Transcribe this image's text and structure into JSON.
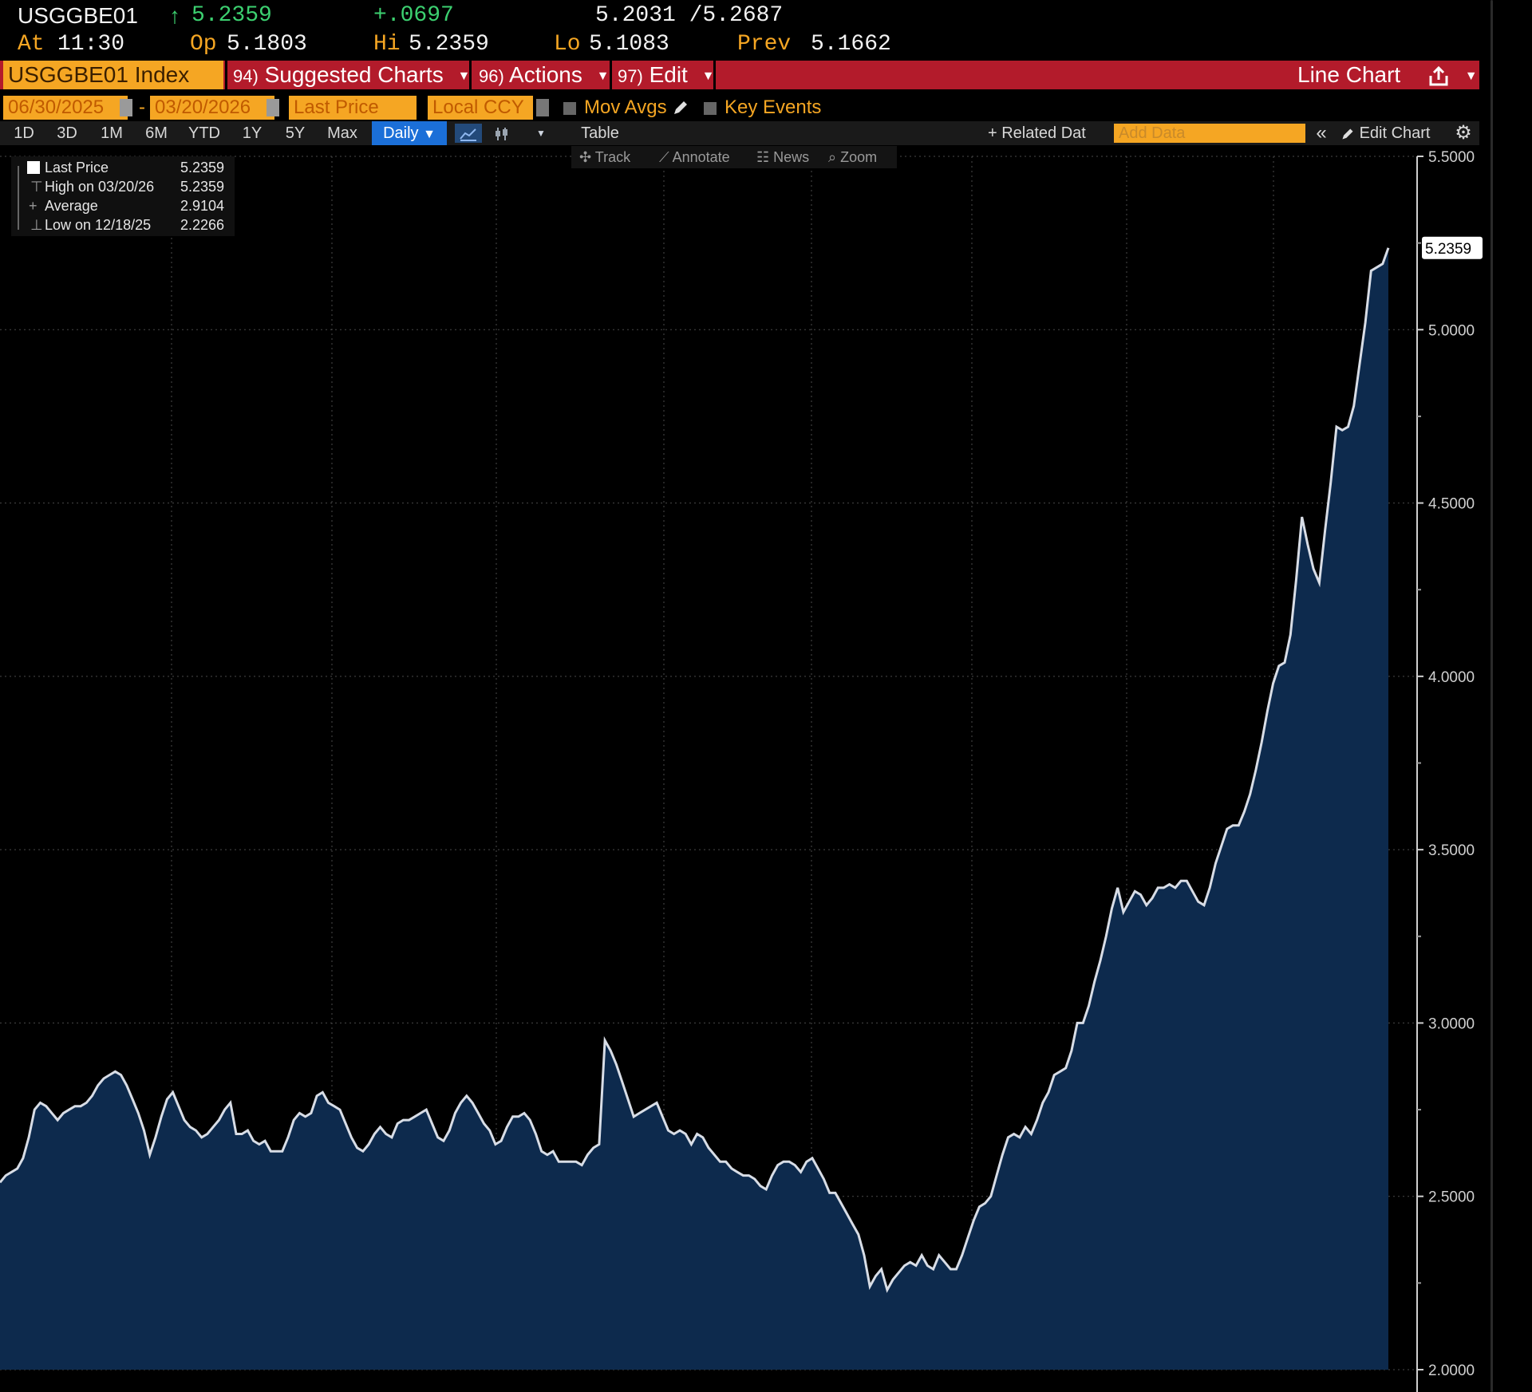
{
  "quote": {
    "ticker": "USGGBE01",
    "arrow": "↑",
    "last": "5.2359",
    "change": "+.0697",
    "bid_ask": "5.2031 /5.2687",
    "at_label": "At",
    "time": "11:30",
    "op_label": "Op",
    "open": "5.1803",
    "hi_label": "Hi",
    "high": "5.2359",
    "lo_label": "Lo",
    "low": "5.1083",
    "prev_label": "Prev",
    "prev": "5.1662"
  },
  "menubar": {
    "security": "USGGBE01 Index",
    "suggested_num": "94)",
    "suggested": "Suggested Charts",
    "actions_num": "96)",
    "actions": "Actions",
    "edit_num": "97)",
    "edit": "Edit",
    "chart_type": "Line Chart"
  },
  "controls": {
    "start_date": "06/30/2025",
    "dash": "-",
    "end_date": "03/20/2026",
    "field": "Last Price",
    "currency": "Local CCY",
    "mov_avgs": "Mov Avgs",
    "key_events": "Key Events"
  },
  "periods": [
    "1D",
    "3D",
    "1M",
    "6M",
    "YTD",
    "1Y",
    "5Y",
    "Max"
  ],
  "frequency": "Daily",
  "toolbar": {
    "table": "Table",
    "related": "+ Related Dat",
    "add_data_placeholder": "Add Data",
    "edit_chart": "Edit Chart"
  },
  "tools": {
    "track": "Track",
    "annotate": "Annotate",
    "news": "News",
    "zoom": "Zoom"
  },
  "legend": {
    "last_label": "Last Price",
    "last_value": "5.2359",
    "high_label": "High on 03/20/26",
    "high_value": "5.2359",
    "avg_label": "Average",
    "avg_value": "2.9104",
    "low_label": "Low on 12/18/25",
    "low_value": "2.2266"
  },
  "colors": {
    "accent_orange": "#f5a623",
    "menubar_red": "#b31b2b",
    "up_green": "#3cd070",
    "area_fill": "#0d2a4d",
    "line": "#d8dde6"
  },
  "chart_data": {
    "type": "area",
    "series": [
      {
        "name": "Last Price",
        "values": [
          2.54,
          2.56,
          2.57,
          2.58,
          2.61,
          2.67,
          2.75,
          2.77,
          2.76,
          2.74,
          2.72,
          2.74,
          2.75,
          2.76,
          2.76,
          2.77,
          2.79,
          2.82,
          2.84,
          2.85,
          2.86,
          2.85,
          2.82,
          2.78,
          2.74,
          2.69,
          2.62,
          2.67,
          2.73,
          2.78,
          2.8,
          2.76,
          2.72,
          2.7,
          2.69,
          2.67,
          2.68,
          2.7,
          2.72,
          2.75,
          2.77,
          2.68,
          2.68,
          2.69,
          2.66,
          2.65,
          2.66,
          2.63,
          2.63,
          2.63,
          2.67,
          2.72,
          2.74,
          2.73,
          2.74,
          2.79,
          2.8,
          2.77,
          2.76,
          2.75,
          2.71,
          2.67,
          2.64,
          2.63,
          2.65,
          2.68,
          2.7,
          2.68,
          2.67,
          2.71,
          2.72,
          2.72,
          2.73,
          2.74,
          2.75,
          2.71,
          2.67,
          2.66,
          2.69,
          2.74,
          2.77,
          2.79,
          2.77,
          2.74,
          2.71,
          2.69,
          2.65,
          2.66,
          2.7,
          2.73,
          2.73,
          2.74,
          2.72,
          2.68,
          2.63,
          2.62,
          2.63,
          2.6,
          2.6,
          2.6,
          2.6,
          2.59,
          2.62,
          2.64,
          2.65,
          2.95,
          2.92,
          2.88,
          2.83,
          2.78,
          2.73,
          2.74,
          2.75,
          2.76,
          2.77,
          2.73,
          2.69,
          2.68,
          2.69,
          2.68,
          2.65,
          2.68,
          2.67,
          2.64,
          2.62,
          2.6,
          2.6,
          2.58,
          2.57,
          2.56,
          2.56,
          2.55,
          2.53,
          2.52,
          2.56,
          2.59,
          2.6,
          2.6,
          2.59,
          2.57,
          2.6,
          2.61,
          2.58,
          2.55,
          2.51,
          2.51,
          2.48,
          2.45,
          2.42,
          2.39,
          2.33,
          2.24,
          2.27,
          2.29,
          2.23,
          2.26,
          2.28,
          2.3,
          2.31,
          2.3,
          2.33,
          2.3,
          2.29,
          2.33,
          2.31,
          2.29,
          2.29,
          2.33,
          2.38,
          2.43,
          2.47,
          2.48,
          2.5,
          2.56,
          2.62,
          2.67,
          2.68,
          2.67,
          2.7,
          2.68,
          2.72,
          2.77,
          2.8,
          2.85,
          2.86,
          2.87,
          2.92,
          3.0,
          3.0,
          3.05,
          3.12,
          3.18,
          3.25,
          3.33,
          3.39,
          3.32,
          3.35,
          3.38,
          3.37,
          3.34,
          3.36,
          3.39,
          3.39,
          3.4,
          3.39,
          3.41,
          3.41,
          3.38,
          3.35,
          3.34,
          3.39,
          3.46,
          3.51,
          3.56,
          3.57,
          3.57,
          3.61,
          3.66,
          3.73,
          3.81,
          3.9,
          3.98,
          4.03,
          4.04,
          4.12,
          4.28,
          4.46,
          4.38,
          4.31,
          4.27,
          4.42,
          4.56,
          4.72,
          4.71,
          4.72,
          4.78,
          4.9,
          5.02,
          5.17,
          5.18,
          5.19,
          5.2359
        ]
      }
    ],
    "x_start": "06/30/2025",
    "x_end": "03/20/2026",
    "ylim": [
      2.0,
      5.5
    ],
    "yticks": [
      "2.0000",
      "2.5000",
      "3.0000",
      "3.5000",
      "4.0000",
      "4.5000",
      "5.0000",
      "5.5000"
    ],
    "last_label": "5.2359",
    "grid": true
  }
}
